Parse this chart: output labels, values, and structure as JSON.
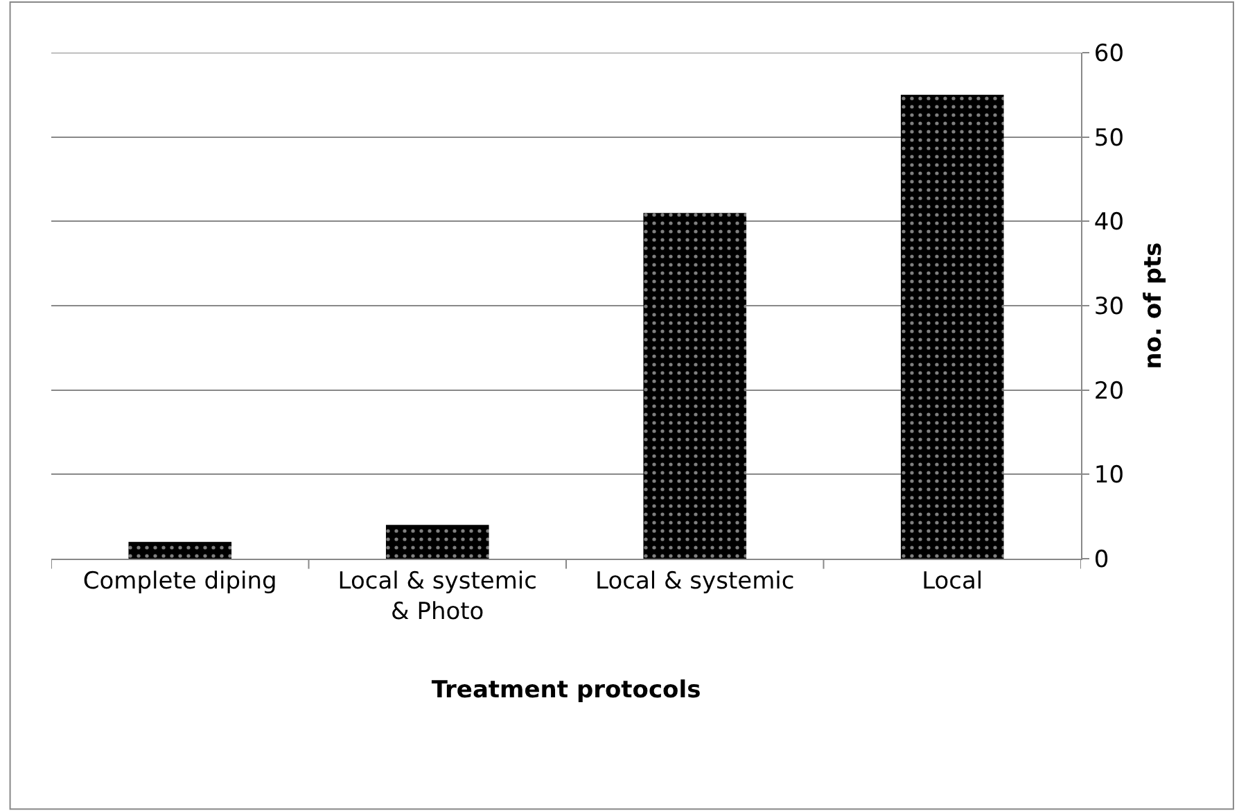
{
  "chart_data": {
    "type": "bar",
    "xlabel": "Treatment protocols",
    "ylabel": "no. of pts",
    "categories": [
      "Complete diping",
      "Local & systemic & Photo",
      "Local & systemic",
      "Local"
    ],
    "values": [
      2,
      4,
      41,
      55
    ],
    "color": "#000000",
    "ylim": [
      0,
      60
    ],
    "yticks": [
      0,
      10,
      20,
      30,
      40,
      50,
      60
    ],
    "grid": "y"
  }
}
